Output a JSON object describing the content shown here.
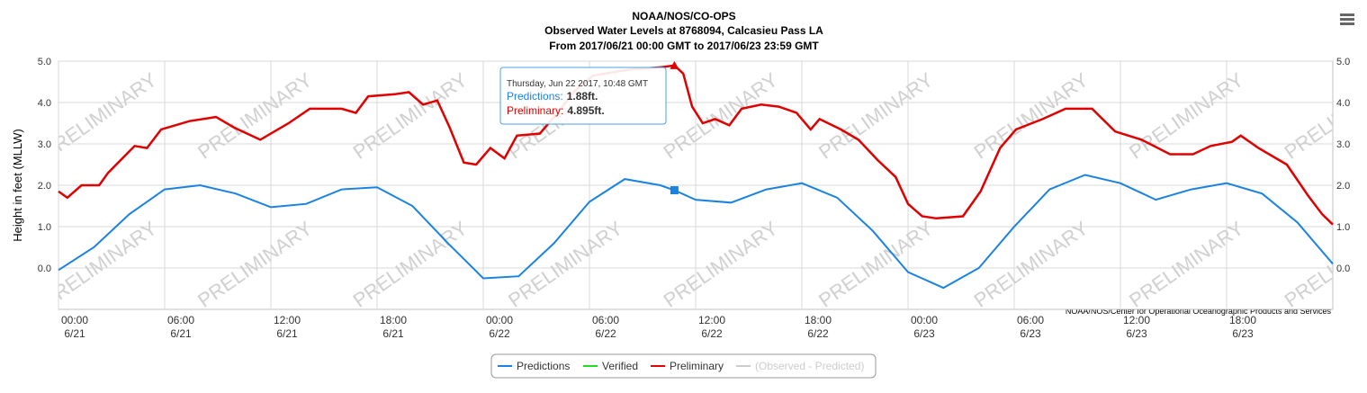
{
  "chart_data": {
    "type": "line",
    "title": "NOAA/NOS/CO-OPS",
    "subtitle": "Observed Water Levels at 8768094, Calcasieu Pass LA",
    "subtitle2": "From 2017/06/21 00:00 GMT to 2017/06/23 23:59 GMT",
    "y_label": "Height in feet (MLLW)",
    "credits": "NOAA/NOS/Center for Operational Oceanographic Products and Services",
    "watermark": "PRELIMINARY",
    "grid": true,
    "xlim": [
      0,
      72
    ],
    "xticks": [
      {
        "value": 0,
        "label": "00:00\n6/21"
      },
      {
        "value": 6,
        "label": "06:00\n6/21"
      },
      {
        "value": 12,
        "label": "12:00\n6/21"
      },
      {
        "value": 18,
        "label": "18:00\n6/21"
      },
      {
        "value": 24,
        "label": "00:00\n6/22"
      },
      {
        "value": 30,
        "label": "06:00\n6/22"
      },
      {
        "value": 36,
        "label": "12:00\n6/22"
      },
      {
        "value": 42,
        "label": "18:00\n6/22"
      },
      {
        "value": 48,
        "label": "00:00\n6/23"
      },
      {
        "value": 54,
        "label": "06:00\n6/23"
      },
      {
        "value": 60,
        "label": "12:00\n6/23"
      },
      {
        "value": 66,
        "label": "18:00\n6/23"
      }
    ],
    "ylim": [
      -1,
      5
    ],
    "yticks": [
      {
        "value": 0,
        "label": "0.0"
      },
      {
        "value": 1,
        "label": "1.0"
      },
      {
        "value": 2,
        "label": "2.0"
      },
      {
        "value": 3,
        "label": "3.0"
      },
      {
        "value": 4,
        "label": "4.0"
      },
      {
        "value": 5,
        "label": "5.0"
      }
    ],
    "series": [
      {
        "name": "Predictions",
        "color": "#1a82e0",
        "x": [
          0,
          2,
          4,
          6,
          8,
          10,
          12,
          14,
          16,
          18,
          20,
          22,
          24,
          26,
          28,
          30,
          32,
          34,
          34.8,
          36,
          38,
          40,
          42,
          44,
          46,
          48,
          50,
          52,
          54,
          56,
          58,
          60,
          62,
          64,
          66,
          68,
          70,
          72
        ],
        "values": [
          -0.05,
          0.5,
          1.3,
          1.9,
          2.0,
          1.8,
          1.47,
          1.55,
          1.9,
          1.95,
          1.5,
          0.6,
          -0.25,
          -0.2,
          0.6,
          1.6,
          2.15,
          2.0,
          1.88,
          1.65,
          1.58,
          1.9,
          2.05,
          1.7,
          0.9,
          -0.1,
          -0.48,
          0.0,
          1.0,
          1.9,
          2.25,
          2.05,
          1.65,
          1.9,
          2.05,
          1.8,
          1.1,
          0.1
        ]
      },
      {
        "name": "Verified",
        "color": "#22dd22",
        "x": [],
        "values": []
      },
      {
        "name": "Preliminary",
        "color": "#e00000",
        "x": [
          0,
          0.5,
          1.3,
          2.3,
          2.8,
          4.3,
          5.0,
          5.8,
          7.4,
          8.9,
          9.9,
          11.4,
          13,
          14.2,
          16,
          16.8,
          17.5,
          19,
          19.8,
          20.6,
          21.4,
          22.1,
          22.9,
          23.6,
          24.4,
          25.2,
          25.9,
          27.2,
          28.2,
          29.2,
          30.2,
          32.3,
          34,
          34.8,
          35.3,
          35.8,
          36.4,
          37.1,
          37.9,
          38.6,
          39.7,
          40.7,
          41.7,
          42.5,
          43,
          44.2,
          45.2,
          46.3,
          47.3,
          48,
          48.8,
          49.6,
          51.1,
          52.1,
          53.2,
          54.1,
          55.6,
          56.9,
          58.4,
          59.7,
          61.2,
          62.8,
          64.1,
          65.1,
          66.3,
          66.8,
          67.8,
          69.4,
          70.6,
          71.4,
          72
        ],
        "values": [
          1.85,
          1.7,
          2.0,
          2.0,
          2.3,
          2.95,
          2.9,
          3.35,
          3.55,
          3.65,
          3.4,
          3.1,
          3.5,
          3.85,
          3.85,
          3.75,
          4.15,
          4.2,
          4.25,
          3.95,
          4.05,
          3.4,
          2.55,
          2.5,
          2.9,
          2.65,
          3.2,
          3.25,
          3.75,
          4.3,
          4.65,
          4.8,
          4.85,
          4.895,
          4.7,
          3.9,
          3.5,
          3.6,
          3.45,
          3.85,
          3.95,
          3.9,
          3.75,
          3.35,
          3.6,
          3.35,
          3.1,
          2.6,
          2.2,
          1.55,
          1.25,
          1.2,
          1.25,
          1.85,
          2.9,
          3.35,
          3.6,
          3.85,
          3.85,
          3.3,
          3.1,
          2.75,
          2.75,
          2.95,
          3.05,
          3.2,
          2.9,
          2.5,
          1.75,
          1.3,
          1.05
        ]
      },
      {
        "name": "(Observed - Predicted)",
        "color": "#cccccc",
        "visible": false,
        "x": [],
        "values": []
      }
    ],
    "tooltip": {
      "x": 34.8,
      "header": "Thursday, Jun 22 2017, 10:48 GMT",
      "rows": [
        {
          "name": "Predictions:",
          "value": "1.88ft."
        },
        {
          "name": "Preliminary:",
          "value": "4.895ft."
        }
      ]
    }
  }
}
